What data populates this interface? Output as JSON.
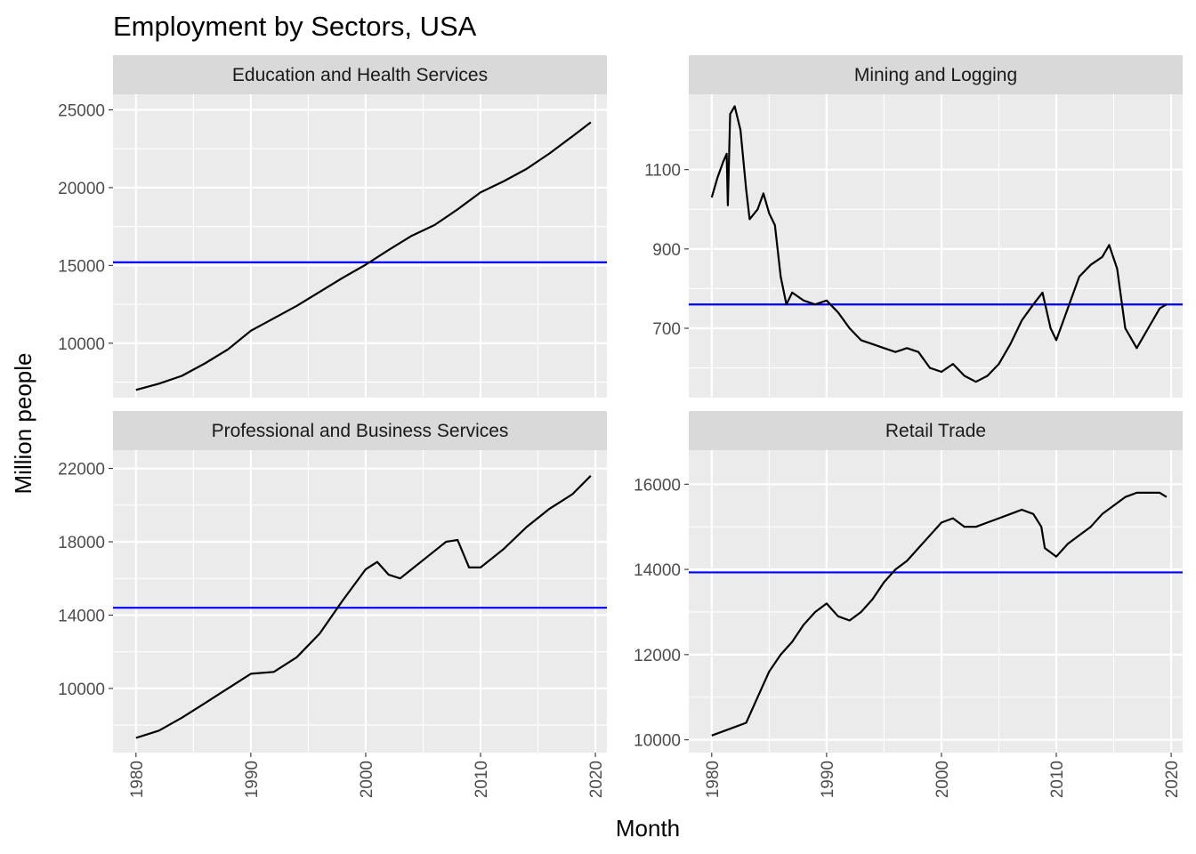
{
  "chart_data": {
    "type": "line",
    "title": "Employment by Sectors, USA",
    "xlabel": "Month",
    "ylabel": "Million people",
    "x_ticks": [
      1980,
      1990,
      2000,
      2010,
      2020
    ],
    "xlim": [
      1978.0,
      2021.0
    ],
    "grid": true,
    "facets": [
      {
        "name": "Education and Health Services",
        "ylim": [
          6500,
          26000
        ],
        "y_ticks": [
          10000,
          15000,
          20000,
          25000
        ],
        "mean_line": 15200,
        "mean_line_color": "#0000ff",
        "line_color": "#000000",
        "points": [
          [
            1980.0,
            7000
          ],
          [
            1982.0,
            7400
          ],
          [
            1984.0,
            7900
          ],
          [
            1986.0,
            8700
          ],
          [
            1988.0,
            9600
          ],
          [
            1990.0,
            10800
          ],
          [
            1992.0,
            11600
          ],
          [
            1994.0,
            12400
          ],
          [
            1996.0,
            13300
          ],
          [
            1998.0,
            14200
          ],
          [
            2000.0,
            15050
          ],
          [
            2002.0,
            16000
          ],
          [
            2004.0,
            16900
          ],
          [
            2006.0,
            17600
          ],
          [
            2008.0,
            18600
          ],
          [
            2010.0,
            19700
          ],
          [
            2012.0,
            20400
          ],
          [
            2014.0,
            21200
          ],
          [
            2016.0,
            22200
          ],
          [
            2018.0,
            23300
          ],
          [
            2019.6,
            24200
          ]
        ]
      },
      {
        "name": "Mining and Logging",
        "ylim": [
          525,
          1290
        ],
        "y_ticks": [
          700,
          900,
          1100
        ],
        "mean_line": 760,
        "mean_line_color": "#0000ff",
        "line_color": "#000000",
        "points": [
          [
            1980.0,
            1030
          ],
          [
            1980.5,
            1080
          ],
          [
            1981.0,
            1120
          ],
          [
            1981.3,
            1140
          ],
          [
            1981.4,
            1010
          ],
          [
            1981.6,
            1240
          ],
          [
            1982.0,
            1260
          ],
          [
            1982.5,
            1200
          ],
          [
            1983.0,
            1050
          ],
          [
            1983.3,
            975
          ],
          [
            1984.0,
            1000
          ],
          [
            1984.5,
            1040
          ],
          [
            1985.0,
            990
          ],
          [
            1985.5,
            960
          ],
          [
            1986.0,
            830
          ],
          [
            1986.5,
            760
          ],
          [
            1987.0,
            790
          ],
          [
            1988.0,
            770
          ],
          [
            1989.0,
            760
          ],
          [
            1990.0,
            770
          ],
          [
            1991.0,
            740
          ],
          [
            1992.0,
            700
          ],
          [
            1993.0,
            670
          ],
          [
            1994.0,
            660
          ],
          [
            1995.0,
            650
          ],
          [
            1996.0,
            640
          ],
          [
            1997.0,
            650
          ],
          [
            1998.0,
            640
          ],
          [
            1999.0,
            600
          ],
          [
            2000.0,
            590
          ],
          [
            2001.0,
            610
          ],
          [
            2002.0,
            580
          ],
          [
            2003.0,
            565
          ],
          [
            2004.0,
            580
          ],
          [
            2005.0,
            610
          ],
          [
            2006.0,
            660
          ],
          [
            2007.0,
            720
          ],
          [
            2008.0,
            760
          ],
          [
            2008.8,
            790
          ],
          [
            2009.5,
            700
          ],
          [
            2010.0,
            670
          ],
          [
            2011.0,
            750
          ],
          [
            2012.0,
            830
          ],
          [
            2013.0,
            860
          ],
          [
            2014.0,
            880
          ],
          [
            2014.6,
            910
          ],
          [
            2015.3,
            850
          ],
          [
            2016.0,
            700
          ],
          [
            2017.0,
            650
          ],
          [
            2018.0,
            700
          ],
          [
            2019.0,
            750
          ],
          [
            2019.6,
            760
          ]
        ]
      },
      {
        "name": "Professional and Business Services",
        "ylim": [
          6500,
          23000
        ],
        "y_ticks": [
          10000,
          14000,
          18000,
          22000
        ],
        "mean_line": 14400,
        "mean_line_color": "#0000ff",
        "line_color": "#000000",
        "points": [
          [
            1980.0,
            7300
          ],
          [
            1982.0,
            7700
          ],
          [
            1984.0,
            8400
          ],
          [
            1986.0,
            9200
          ],
          [
            1988.0,
            10000
          ],
          [
            1990.0,
            10800
          ],
          [
            1992.0,
            10900
          ],
          [
            1994.0,
            11700
          ],
          [
            1996.0,
            13000
          ],
          [
            1998.0,
            14800
          ],
          [
            2000.0,
            16500
          ],
          [
            2001.0,
            16900
          ],
          [
            2002.0,
            16200
          ],
          [
            2003.0,
            16000
          ],
          [
            2004.0,
            16500
          ],
          [
            2006.0,
            17500
          ],
          [
            2007.0,
            18000
          ],
          [
            2008.0,
            18100
          ],
          [
            2009.0,
            16600
          ],
          [
            2010.0,
            16600
          ],
          [
            2012.0,
            17600
          ],
          [
            2014.0,
            18800
          ],
          [
            2016.0,
            19800
          ],
          [
            2018.0,
            20600
          ],
          [
            2019.6,
            21600
          ]
        ]
      },
      {
        "name": "Retail Trade",
        "ylim": [
          9700,
          16800
        ],
        "y_ticks": [
          10000,
          12000,
          14000,
          16000
        ],
        "mean_line": 13930,
        "mean_line_color": "#0000ff",
        "line_color": "#000000",
        "points": [
          [
            1980.0,
            10100
          ],
          [
            1982.0,
            10300
          ],
          [
            1983.0,
            10400
          ],
          [
            1984.0,
            11000
          ],
          [
            1985.0,
            11600
          ],
          [
            1986.0,
            12000
          ],
          [
            1987.0,
            12300
          ],
          [
            1988.0,
            12700
          ],
          [
            1989.0,
            13000
          ],
          [
            1990.0,
            13200
          ],
          [
            1991.0,
            12900
          ],
          [
            1992.0,
            12800
          ],
          [
            1993.0,
            13000
          ],
          [
            1994.0,
            13300
          ],
          [
            1995.0,
            13700
          ],
          [
            1996.0,
            14000
          ],
          [
            1997.0,
            14200
          ],
          [
            1998.0,
            14500
          ],
          [
            1999.0,
            14800
          ],
          [
            2000.0,
            15100
          ],
          [
            2001.0,
            15200
          ],
          [
            2002.0,
            15000
          ],
          [
            2003.0,
            15000
          ],
          [
            2004.0,
            15100
          ],
          [
            2005.0,
            15200
          ],
          [
            2006.0,
            15300
          ],
          [
            2007.0,
            15400
          ],
          [
            2008.0,
            15300
          ],
          [
            2008.7,
            15000
          ],
          [
            2009.0,
            14500
          ],
          [
            2010.0,
            14300
          ],
          [
            2011.0,
            14600
          ],
          [
            2012.0,
            14800
          ],
          [
            2013.0,
            15000
          ],
          [
            2014.0,
            15300
          ],
          [
            2015.0,
            15500
          ],
          [
            2016.0,
            15700
          ],
          [
            2017.0,
            15800
          ],
          [
            2018.0,
            15800
          ],
          [
            2019.0,
            15800
          ],
          [
            2019.6,
            15700
          ]
        ]
      }
    ]
  }
}
